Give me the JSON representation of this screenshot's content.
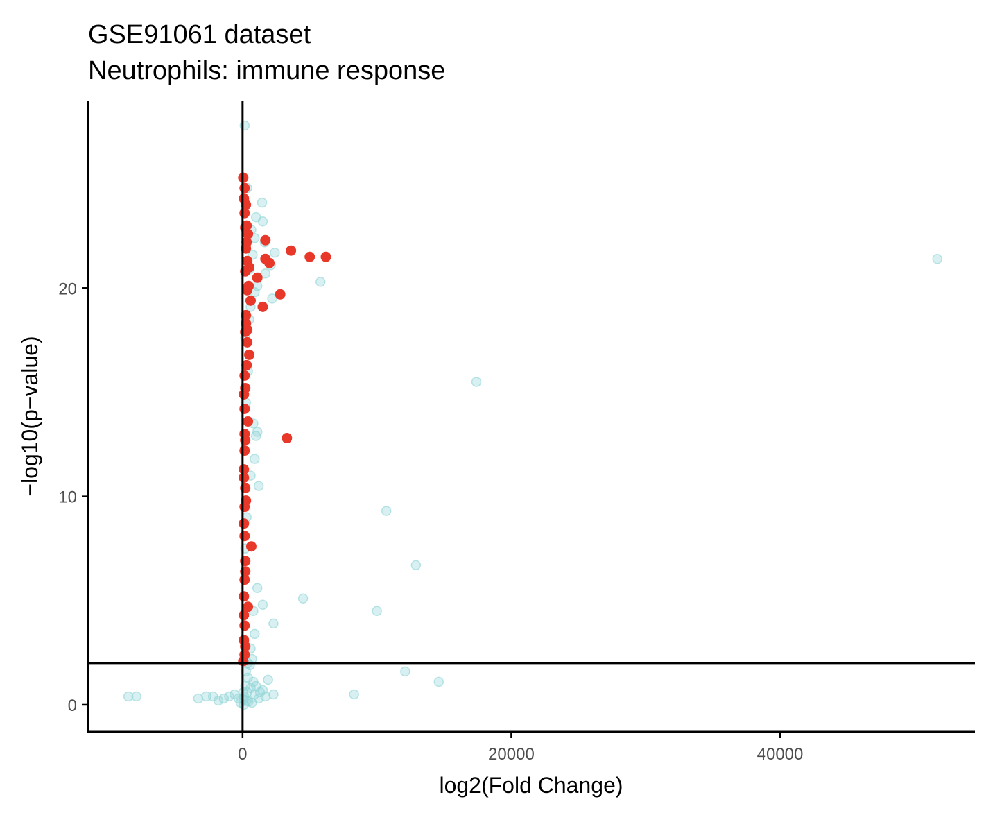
{
  "chart_data": {
    "type": "scatter",
    "title": "GSE91061 dataset",
    "subtitle": "Neutrophils: immune response",
    "xlabel": "log2(Fold Change)",
    "ylabel": "−log10(p−value)",
    "xlim": [
      -11500,
      54500
    ],
    "ylim": [
      -1.3,
      29
    ],
    "x_ticks": [
      0,
      20000,
      40000
    ],
    "x_tick_labels": [
      "0",
      "20000",
      "40000"
    ],
    "y_ticks": [
      0,
      10,
      20
    ],
    "y_tick_labels": [
      "0",
      "10",
      "20"
    ],
    "grid": false,
    "legend": "none",
    "reference_lines": {
      "vertical_x": 0,
      "horizontal_y": 2
    },
    "colors": {
      "not_significant": "#8fd3d6",
      "significant": "#e8382a",
      "axis": "#000000"
    },
    "series": [
      {
        "role": "not_significant",
        "points": [
          [
            150,
            27.8
          ],
          [
            1450,
            24.1
          ],
          [
            1500,
            23.2
          ],
          [
            1000,
            23.4
          ],
          [
            900,
            22.4
          ],
          [
            1650,
            22.2
          ],
          [
            2400,
            21.7
          ],
          [
            2100,
            21.1
          ],
          [
            1700,
            20.7
          ],
          [
            1100,
            20.1
          ],
          [
            2200,
            19.5
          ],
          [
            600,
            19.1
          ],
          [
            500,
            18.5
          ],
          [
            5800,
            20.3
          ],
          [
            51700,
            21.4
          ],
          [
            17400,
            15.5
          ],
          [
            800,
            13.5
          ],
          [
            1000,
            12.9
          ],
          [
            1100,
            13.1
          ],
          [
            900,
            11.8
          ],
          [
            1200,
            10.5
          ],
          [
            600,
            11.0
          ],
          [
            10700,
            9.3
          ],
          [
            12900,
            6.7
          ],
          [
            1100,
            5.6
          ],
          [
            1500,
            4.8
          ],
          [
            800,
            4.5
          ],
          [
            4500,
            5.1
          ],
          [
            10000,
            4.5
          ],
          [
            2300,
            3.9
          ],
          [
            900,
            3.4
          ],
          [
            600,
            2.7
          ],
          [
            700,
            2.2
          ],
          [
            400,
            2.0
          ],
          [
            12100,
            1.6
          ],
          [
            14600,
            1.1
          ],
          [
            8300,
            0.5
          ],
          [
            -8500,
            0.4
          ],
          [
            -7900,
            0.4
          ],
          [
            -3300,
            0.3
          ],
          [
            -2700,
            0.4
          ],
          [
            -2200,
            0.4
          ],
          [
            -1800,
            0.2
          ],
          [
            -1400,
            0.3
          ],
          [
            -1000,
            0.4
          ],
          [
            -600,
            0.5
          ],
          [
            -300,
            0.3
          ],
          [
            -150,
            0.1
          ],
          [
            50,
            0.6
          ],
          [
            200,
            0.9
          ],
          [
            400,
            1.3
          ],
          [
            600,
            0.8
          ],
          [
            900,
            0.5
          ],
          [
            1200,
            0.3
          ],
          [
            1500,
            0.7
          ],
          [
            1900,
            1.2
          ],
          [
            2300,
            0.5
          ],
          [
            300,
            0.2
          ],
          [
            700,
            0.1
          ],
          [
            100,
            0.0
          ],
          [
            250,
            1.6
          ],
          [
            550,
            1.9
          ],
          [
            120,
            0.4
          ],
          [
            350,
            0.6
          ],
          [
            800,
            1.1
          ],
          [
            1000,
            0.9
          ],
          [
            450,
            0.15
          ],
          [
            60,
            0.25
          ],
          [
            1300,
            0.6
          ],
          [
            1700,
            0.4
          ],
          [
            200,
            7.5
          ],
          [
            300,
            9.0
          ],
          [
            250,
            14.5
          ],
          [
            400,
            16.0
          ],
          [
            200,
            17.6
          ],
          [
            650,
            22.8
          ],
          [
            750,
            21.6
          ],
          [
            900,
            19.8
          ],
          [
            350,
            24.8
          ],
          [
            500,
            20.9
          ]
        ]
      },
      {
        "role": "significant",
        "points": [
          [
            50,
            25.3
          ],
          [
            100,
            24.3
          ],
          [
            150,
            23.6
          ],
          [
            200,
            22.9
          ],
          [
            300,
            22.2
          ],
          [
            1700,
            22.3
          ],
          [
            3600,
            21.8
          ],
          [
            5000,
            21.5
          ],
          [
            6200,
            21.5
          ],
          [
            1700,
            21.4
          ],
          [
            2000,
            21.2
          ],
          [
            1100,
            20.5
          ],
          [
            2800,
            19.7
          ],
          [
            1500,
            19.1
          ],
          [
            250,
            18.3
          ],
          [
            350,
            17.4
          ],
          [
            500,
            16.8
          ],
          [
            150,
            15.8
          ],
          [
            100,
            14.9
          ],
          [
            400,
            13.6
          ],
          [
            3300,
            12.8
          ],
          [
            150,
            12.2
          ],
          [
            100,
            11.3
          ],
          [
            200,
            10.4
          ],
          [
            150,
            9.5
          ],
          [
            100,
            8.7
          ],
          [
            650,
            7.6
          ],
          [
            200,
            6.9
          ],
          [
            150,
            6.0
          ],
          [
            100,
            5.2
          ],
          [
            400,
            4.7
          ],
          [
            150,
            3.8
          ],
          [
            100,
            3.1
          ],
          [
            150,
            2.4
          ],
          [
            50,
            2.1
          ],
          [
            300,
            23.0
          ],
          [
            250,
            21.9
          ],
          [
            200,
            20.8
          ],
          [
            350,
            19.9
          ],
          [
            250,
            18.7
          ],
          [
            200,
            17.9
          ],
          [
            300,
            16.3
          ],
          [
            150,
            14.2
          ],
          [
            200,
            12.7
          ],
          [
            100,
            10.9
          ],
          [
            250,
            9.8
          ],
          [
            150,
            8.1
          ],
          [
            200,
            6.4
          ],
          [
            100,
            4.3
          ],
          [
            200,
            2.8
          ],
          [
            400,
            22.6
          ],
          [
            500,
            21.0
          ],
          [
            450,
            20.1
          ],
          [
            600,
            19.4
          ],
          [
            350,
            18.0
          ],
          [
            150,
            24.8
          ],
          [
            250,
            24.0
          ],
          [
            350,
            21.3
          ],
          [
            200,
            15.2
          ],
          [
            150,
            13.0
          ]
        ]
      }
    ]
  }
}
